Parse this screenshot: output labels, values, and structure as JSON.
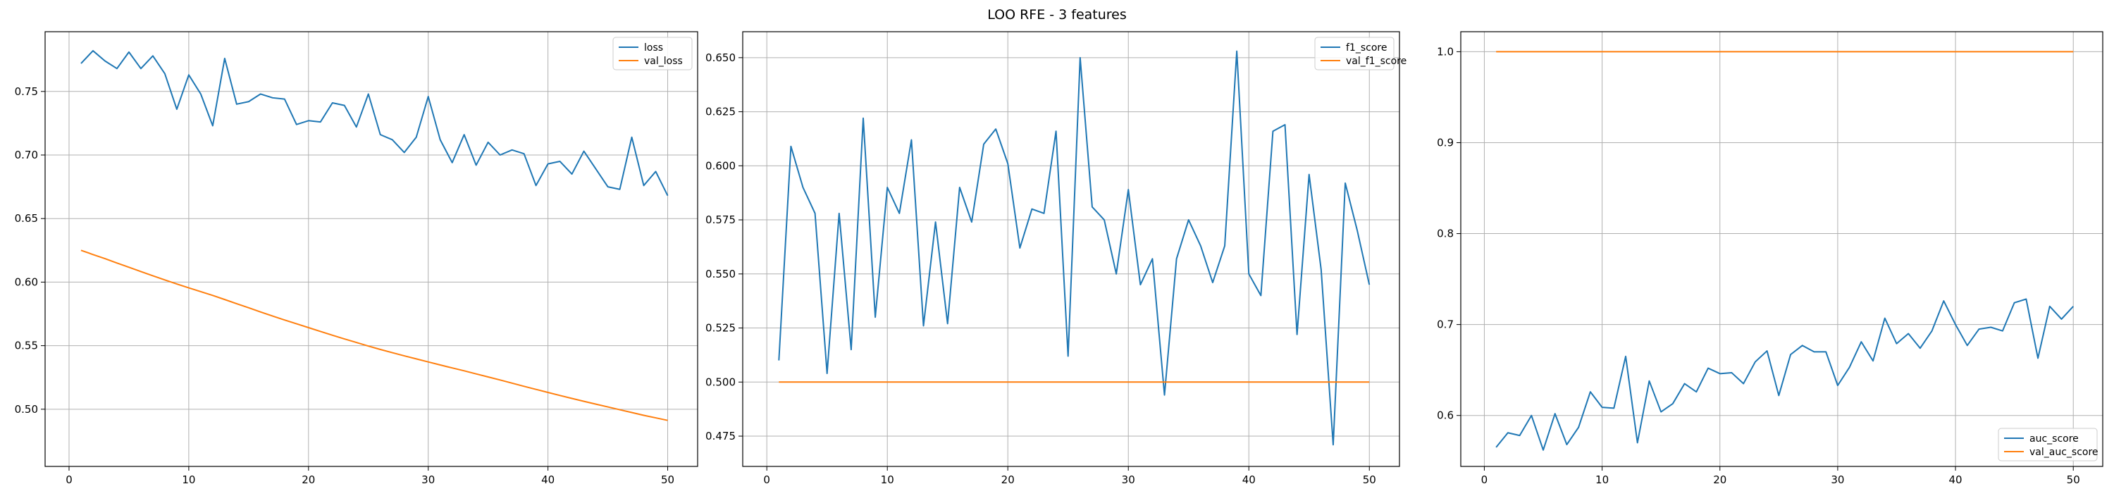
{
  "figure": {
    "title": "LOO RFE - 3 features",
    "colors": {
      "series1": "#1f77b4",
      "series2": "#ff7f0e",
      "grid": "#b0b0b0",
      "axis": "#000000"
    }
  },
  "chart_data": [
    {
      "type": "line",
      "xlim": [
        -2,
        52.5
      ],
      "ylim": [
        0.455,
        0.797
      ],
      "xticks": [
        0,
        10,
        20,
        30,
        40,
        50
      ],
      "yticks": [
        0.5,
        0.55,
        0.6,
        0.65,
        0.7,
        0.75
      ],
      "ytick_labels": [
        "0.50",
        "0.55",
        "0.60",
        "0.65",
        "0.70",
        "0.75"
      ],
      "grid": true,
      "legend": "top-right",
      "x": [
        1,
        2,
        3,
        4,
        5,
        6,
        7,
        8,
        9,
        10,
        11,
        12,
        13,
        14,
        15,
        16,
        17,
        18,
        19,
        20,
        21,
        22,
        23,
        24,
        25,
        26,
        27,
        28,
        29,
        30,
        31,
        32,
        33,
        34,
        35,
        36,
        37,
        38,
        39,
        40,
        41,
        42,
        43,
        44,
        45,
        46,
        47,
        48,
        49,
        50
      ],
      "series": [
        {
          "name": "loss",
          "values": [
            0.772,
            0.782,
            0.774,
            0.768,
            0.781,
            0.768,
            0.778,
            0.764,
            0.736,
            0.763,
            0.748,
            0.723,
            0.776,
            0.74,
            0.742,
            0.748,
            0.745,
            0.744,
            0.724,
            0.727,
            0.726,
            0.741,
            0.739,
            0.722,
            0.748,
            0.716,
            0.712,
            0.702,
            0.714,
            0.746,
            0.712,
            0.694,
            0.716,
            0.692,
            0.71,
            0.7,
            0.704,
            0.701,
            0.676,
            0.693,
            0.695,
            0.685,
            0.703,
            0.689,
            0.675,
            0.673,
            0.714,
            0.676,
            0.687,
            0.668
          ]
        },
        {
          "name": "val_loss",
          "values": [
            0.625,
            0.6217,
            0.6185,
            0.615,
            0.6117,
            0.6083,
            0.605,
            0.6017,
            0.5985,
            0.5955,
            0.5925,
            0.5895,
            0.5863,
            0.583,
            0.5798,
            0.5765,
            0.5733,
            0.5702,
            0.5672,
            0.5642,
            0.5612,
            0.5582,
            0.5553,
            0.5525,
            0.5497,
            0.547,
            0.5445,
            0.542,
            0.5396,
            0.5372,
            0.5348,
            0.5325,
            0.5302,
            0.5278,
            0.5254,
            0.523,
            0.5205,
            0.518,
            0.5156,
            0.5132,
            0.5108,
            0.5085,
            0.5062,
            0.504,
            0.5018,
            0.4996,
            0.4974,
            0.4952,
            0.4932,
            0.4912
          ]
        }
      ]
    },
    {
      "type": "line",
      "xlim": [
        -2,
        52.5
      ],
      "ylim": [
        0.461,
        0.662
      ],
      "xticks": [
        0,
        10,
        20,
        30,
        40,
        50
      ],
      "yticks": [
        0.475,
        0.5,
        0.525,
        0.55,
        0.575,
        0.6,
        0.625,
        0.65
      ],
      "ytick_labels": [
        "0.475",
        "0.500",
        "0.525",
        "0.550",
        "0.575",
        "0.600",
        "0.625",
        "0.650"
      ],
      "grid": true,
      "legend": "top-right",
      "x": [
        1,
        2,
        3,
        4,
        5,
        6,
        7,
        8,
        9,
        10,
        11,
        12,
        13,
        14,
        15,
        16,
        17,
        18,
        19,
        20,
        21,
        22,
        23,
        24,
        25,
        26,
        27,
        28,
        29,
        30,
        31,
        32,
        33,
        34,
        35,
        36,
        37,
        38,
        39,
        40,
        41,
        42,
        43,
        44,
        45,
        46,
        47,
        48,
        49,
        50
      ],
      "series": [
        {
          "name": "f1_score",
          "values": [
            0.51,
            0.609,
            0.59,
            0.578,
            0.504,
            0.578,
            0.515,
            0.622,
            0.53,
            0.59,
            0.578,
            0.612,
            0.526,
            0.574,
            0.527,
            0.59,
            0.574,
            0.61,
            0.617,
            0.601,
            0.562,
            0.58,
            0.578,
            0.616,
            0.512,
            0.65,
            0.581,
            0.575,
            0.55,
            0.589,
            0.545,
            0.557,
            0.494,
            0.557,
            0.575,
            0.563,
            0.546,
            0.563,
            0.653,
            0.55,
            0.54,
            0.616,
            0.619,
            0.522,
            0.596,
            0.552,
            0.471,
            0.592,
            0.57,
            0.545
          ]
        },
        {
          "name": "val_f1_score",
          "values": [
            0.5,
            0.5,
            0.5,
            0.5,
            0.5,
            0.5,
            0.5,
            0.5,
            0.5,
            0.5,
            0.5,
            0.5,
            0.5,
            0.5,
            0.5,
            0.5,
            0.5,
            0.5,
            0.5,
            0.5,
            0.5,
            0.5,
            0.5,
            0.5,
            0.5,
            0.5,
            0.5,
            0.5,
            0.5,
            0.5,
            0.5,
            0.5,
            0.5,
            0.5,
            0.5,
            0.5,
            0.5,
            0.5,
            0.5,
            0.5,
            0.5,
            0.5,
            0.5,
            0.5,
            0.5,
            0.5,
            0.5,
            0.5,
            0.5,
            0.5
          ]
        }
      ]
    },
    {
      "type": "line",
      "xlim": [
        -2,
        52.5
      ],
      "ylim": [
        0.544,
        1.022
      ],
      "xticks": [
        0,
        10,
        20,
        30,
        40,
        50
      ],
      "yticks": [
        0.6,
        0.7,
        0.8,
        0.9,
        1.0
      ],
      "ytick_labels": [
        "0.6",
        "0.7",
        "0.8",
        "0.9",
        "1.0"
      ],
      "grid": true,
      "legend": "bottom-right",
      "x": [
        1,
        2,
        3,
        4,
        5,
        6,
        7,
        8,
        9,
        10,
        11,
        12,
        13,
        14,
        15,
        16,
        17,
        18,
        19,
        20,
        21,
        22,
        23,
        24,
        25,
        26,
        27,
        28,
        29,
        30,
        31,
        32,
        33,
        34,
        35,
        36,
        37,
        38,
        39,
        40,
        41,
        42,
        43,
        44,
        45,
        46,
        47,
        48,
        49,
        50
      ],
      "series": [
        {
          "name": "auc_score",
          "values": [
            0.565,
            0.581,
            0.578,
            0.6,
            0.562,
            0.602,
            0.568,
            0.587,
            0.626,
            0.609,
            0.608,
            0.665,
            0.57,
            0.638,
            0.604,
            0.613,
            0.635,
            0.626,
            0.652,
            0.646,
            0.647,
            0.635,
            0.659,
            0.671,
            0.622,
            0.667,
            0.677,
            0.67,
            0.67,
            0.633,
            0.653,
            0.681,
            0.66,
            0.707,
            0.679,
            0.69,
            0.674,
            0.693,
            0.726,
            0.7,
            0.677,
            0.695,
            0.697,
            0.693,
            0.724,
            0.728,
            0.663,
            0.72,
            0.706,
            0.72
          ]
        },
        {
          "name": "val_auc_score",
          "values": [
            1.0,
            1.0,
            1.0,
            1.0,
            1.0,
            1.0,
            1.0,
            1.0,
            1.0,
            1.0,
            1.0,
            1.0,
            1.0,
            1.0,
            1.0,
            1.0,
            1.0,
            1.0,
            1.0,
            1.0,
            1.0,
            1.0,
            1.0,
            1.0,
            1.0,
            1.0,
            1.0,
            1.0,
            1.0,
            1.0,
            1.0,
            1.0,
            1.0,
            1.0,
            1.0,
            1.0,
            1.0,
            1.0,
            1.0,
            1.0,
            1.0,
            1.0,
            1.0,
            1.0,
            1.0,
            1.0,
            1.0,
            1.0,
            1.0,
            1.0
          ]
        }
      ]
    }
  ]
}
